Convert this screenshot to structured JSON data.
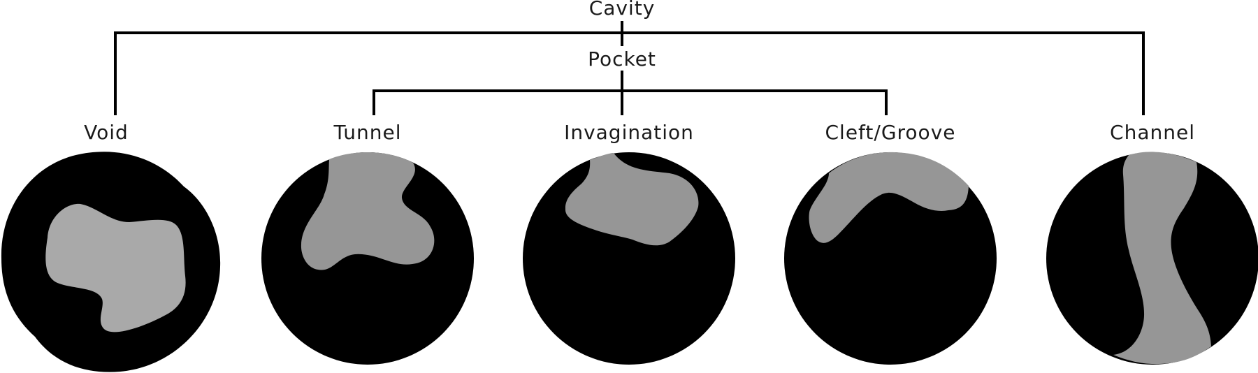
{
  "root": {
    "label": "Cavity"
  },
  "pocket": {
    "label": "Pocket"
  },
  "classes": [
    {
      "id": "void",
      "label": "Void"
    },
    {
      "id": "tunnel",
      "label": "Tunnel"
    },
    {
      "id": "invagination",
      "label": "Invagination"
    },
    {
      "id": "cleft",
      "label": "Cleft/Groove"
    },
    {
      "id": "channel",
      "label": "Channel"
    }
  ],
  "colors": {
    "protein": "#000000",
    "cavity_fill": "#969696",
    "void_fill": "#a9a9a9",
    "tree_lines": "#000000"
  }
}
